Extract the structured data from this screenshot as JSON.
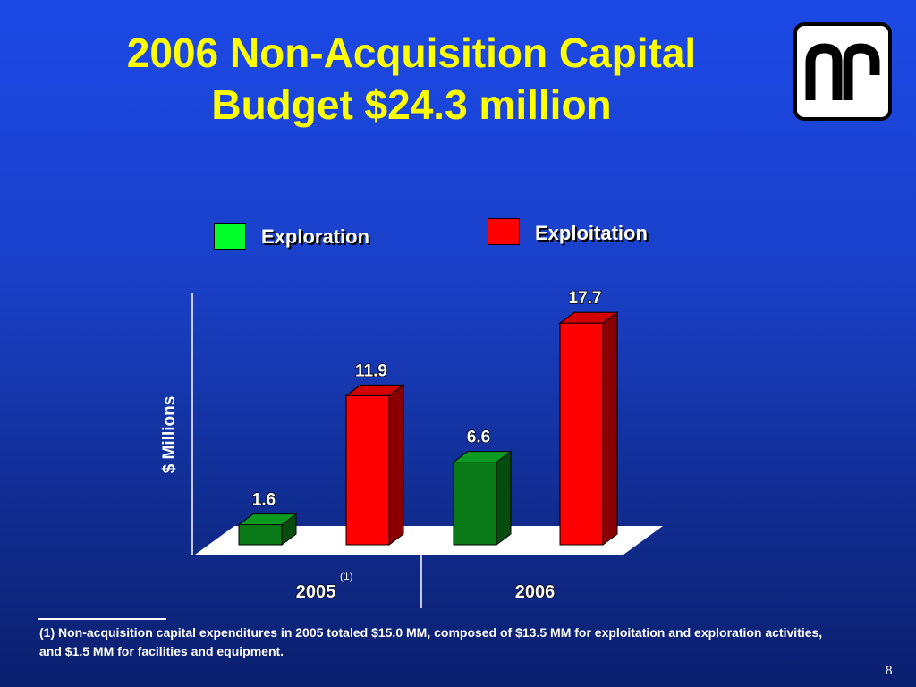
{
  "title_line1": "2006 Non-Acquisition Capital",
  "title_line2": "Budget $24.3 million",
  "logo_icon": "company-logo-icon",
  "footnote": "(1) Non-acquisition capital expenditures in 2005 totaled $15.0 MM, composed of $13.5 MM for exploitation and exploration activities, and $1.5 MM for facilities and equipment.",
  "page_number": "8",
  "colors": {
    "exploration": "#00ff2a",
    "exploration_bar": "#0a7a18",
    "exploitation": "#ff0000"
  },
  "chart_data": {
    "type": "bar",
    "title": "",
    "ylabel": "$ Millions",
    "xlabel": "",
    "categories": [
      "2005",
      "2006"
    ],
    "category_footnote": "(1)",
    "series": [
      {
        "name": "Exploration",
        "values": [
          1.6,
          6.6
        ]
      },
      {
        "name": "Exploitation",
        "values": [
          11.9,
          17.7
        ]
      }
    ],
    "value_labels": [
      "1.6",
      "11.9",
      "6.6",
      "17.7"
    ],
    "ylim": [
      0,
      20
    ],
    "grid": false,
    "legend_position": "top"
  }
}
